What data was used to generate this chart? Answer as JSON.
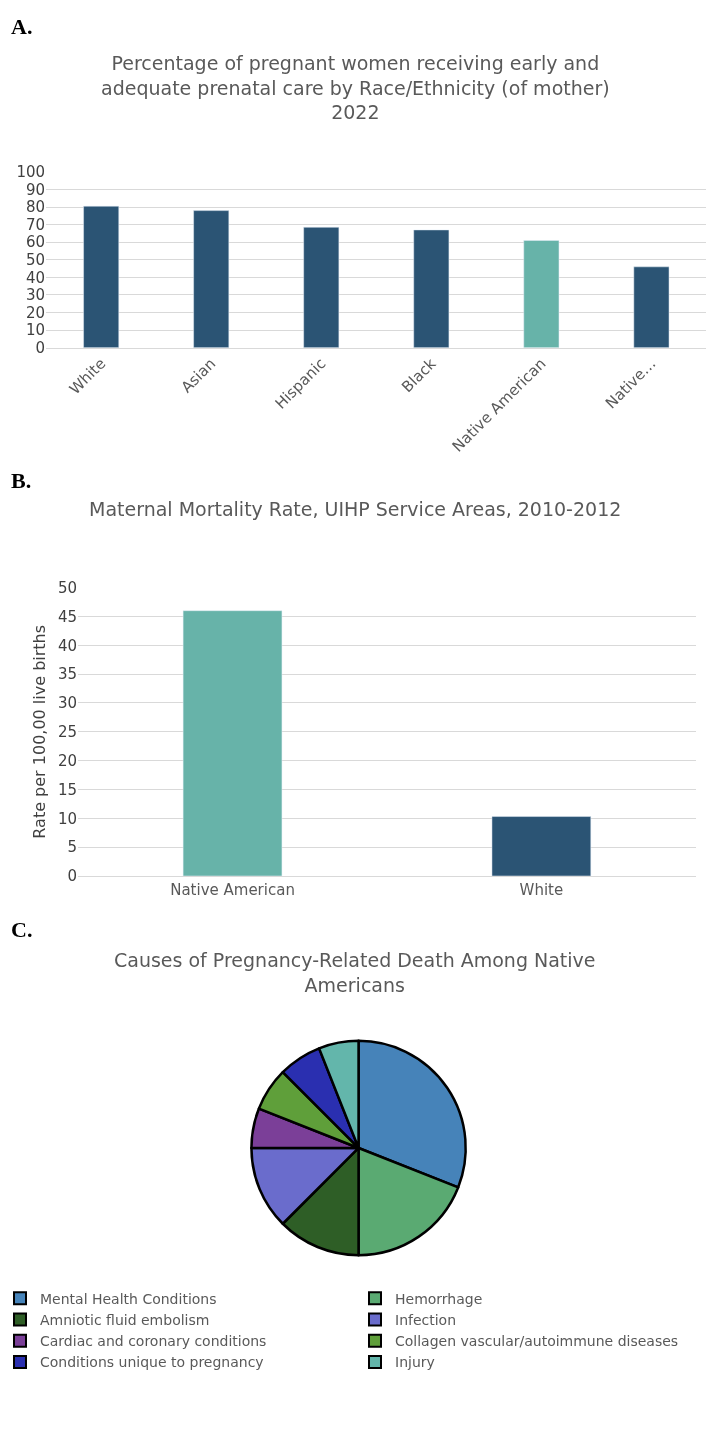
{
  "chart_data": [
    {
      "type": "bar",
      "title": "Percentage of pregnant women receiving early and adequate prenatal care by Race/Ethnicity (of mother) 2022",
      "annotations": [
        "A."
      ],
      "categories": [
        "White",
        "Asian",
        "Hispanic",
        "Black",
        "Native American",
        "Native…"
      ],
      "values": [
        80.5,
        78,
        68.5,
        67,
        61,
        46
      ],
      "colors": [
        "#2b5474",
        "#2b5474",
        "#2b5474",
        "#2b5474",
        "#67b3a9",
        "#2b5474"
      ],
      "ylim": [
        0,
        100
      ],
      "yticks": [
        0,
        10,
        20,
        30,
        40,
        50,
        60,
        70,
        80,
        90,
        100
      ],
      "grid": "y"
    },
    {
      "type": "bar",
      "title": "Maternal Mortality Rate, UIHP Service Areas, 2010-2012",
      "annotations": [
        "B."
      ],
      "ylabel": "Rate per 100,00 live births",
      "categories": [
        "Native American",
        "White"
      ],
      "values": [
        46,
        10.3
      ],
      "colors": [
        "#67b3a9",
        "#2b5474"
      ],
      "ylim": [
        0,
        50
      ],
      "yticks": [
        0,
        5,
        10,
        15,
        20,
        25,
        30,
        35,
        40,
        45,
        50
      ],
      "grid": "y"
    },
    {
      "type": "pie",
      "title": "Causes of Pregnancy-Related Death Among Native Americans",
      "annotations": [
        "C."
      ],
      "categories": [
        "Mental Health Conditions",
        "Hemorrhage",
        "Amniotic fluid embolism",
        "Infection",
        "Cardiac and coronary conditions",
        "Collagen vascular/autoimmune diseases",
        "Conditions unique to pregnancy",
        "Injury"
      ],
      "values": [
        31,
        19,
        12.5,
        12.5,
        6,
        6.5,
        6.5,
        6
      ],
      "colors": [
        "#4683b9",
        "#5aaa72",
        "#2e5e26",
        "#6a6ccc",
        "#7b3f98",
        "#5f9f3a",
        "#2a2fb0",
        "#63b6ab"
      ],
      "legend": "bottom"
    }
  ]
}
